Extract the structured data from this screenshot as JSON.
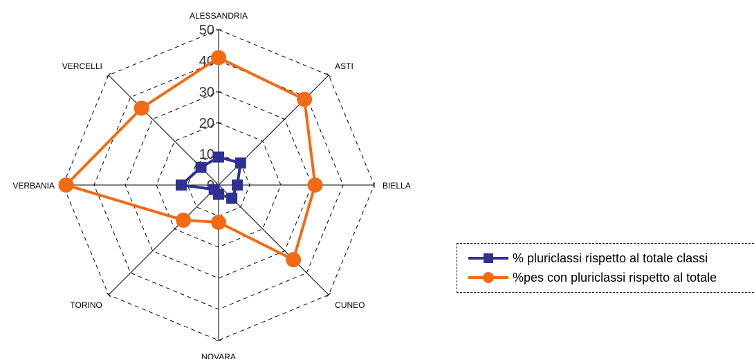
{
  "chart_data": {
    "type": "radar",
    "categories": [
      "ALESSANDRIA",
      "ASTI",
      "BIELLA",
      "CUNEO",
      "NOVARA",
      "TORINO",
      "VERBANIA",
      "VERCELLI"
    ],
    "rlim": [
      0,
      50
    ],
    "ticks": [
      "0",
      "10",
      "20",
      "30",
      "40",
      "50"
    ],
    "tick_values": [
      0,
      10,
      20,
      30,
      40,
      50
    ],
    "grid": true,
    "legend": "bottom-right",
    "series": [
      {
        "name": "% pluriclassi rispetto al totale classi",
        "color": "#2e3192",
        "marker": "square",
        "values": [
          9,
          10,
          6,
          6,
          3,
          2,
          12,
          8
        ]
      },
      {
        "name": "%pes con pluriclassi rispetto al totale",
        "color": "#f26a13",
        "marker": "circle",
        "values": [
          41,
          39,
          31,
          34,
          12,
          16,
          49,
          35
        ]
      }
    ]
  }
}
